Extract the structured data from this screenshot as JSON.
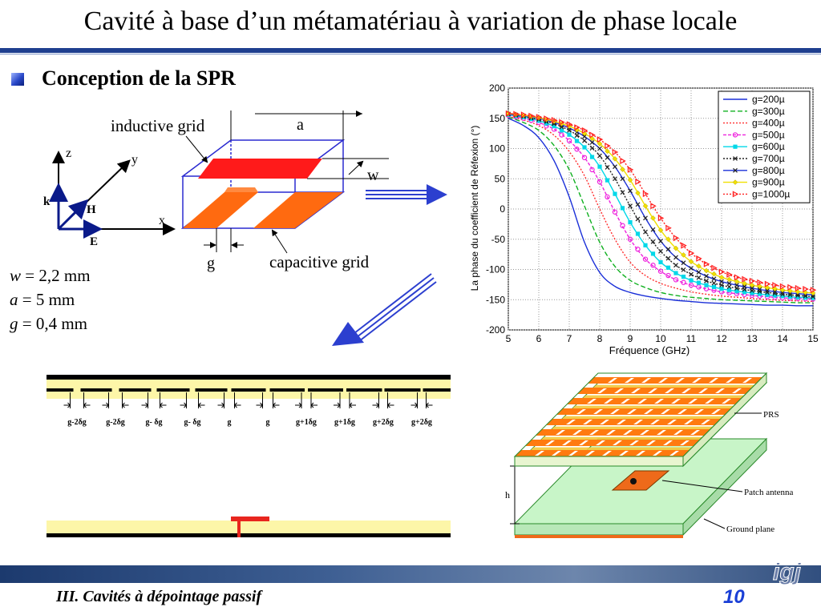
{
  "slide": {
    "title": "Cavité à base d’un métamatériau à variation de phase locale",
    "section": "Conception de la SPR",
    "footer": "III. Cavités à dépointage passif",
    "page_number": "10",
    "logo_text": "igj"
  },
  "params": [
    {
      "symbol": "w",
      "value": " = 2,2 mm"
    },
    {
      "symbol": "a",
      "value": " = 5 mm"
    },
    {
      "symbol": "g",
      "value": " = 0,4 mm"
    }
  ],
  "cell_diagram": {
    "inductive_label": "inductive grid",
    "capacitive_label": "capacitive grid",
    "a_label": "a",
    "w_label": "w",
    "g_label": "g",
    "axis_z": "z",
    "axis_y": "y",
    "axis_x": "x",
    "k_label": "k",
    "h_label": "H",
    "e_label": "E",
    "colors": {
      "inductive": "#ff1a1a",
      "capacitive": "#ff6a10",
      "box": "#2a2ad0"
    }
  },
  "gap_diagram": {
    "labels": [
      "g-2δg",
      "g-2δg",
      "g- δg",
      "g- δg",
      "g",
      "g",
      "g+1δg",
      "g+1δg",
      "g+2δg",
      "g+2δg"
    ],
    "colors": {
      "substrate": "#fdf6a8",
      "metal": "#000000",
      "feed": "#e8261e"
    }
  },
  "structure_3d": {
    "prs_label": "PRS",
    "h_label": "h",
    "patch_label": "Patch antenna",
    "ground_label": "Ground plane",
    "colors": {
      "strips": "#ff7a10",
      "bottom_strips": "#f3c63a",
      "ground": "#c8f5c8",
      "patch": "#ee6a1a"
    }
  },
  "chart_data": {
    "type": "line",
    "xlabel": "Fréquence (GHz)",
    "ylabel": "La phase du coefficient de Réfexion (°)",
    "xlim": [
      5,
      15
    ],
    "ylim": [
      -200,
      200
    ],
    "xticks": [
      5,
      6,
      7,
      8,
      9,
      10,
      11,
      12,
      13,
      14,
      15
    ],
    "yticks": [
      200,
      150,
      100,
      50,
      0,
      -50,
      -100,
      -150,
      -200
    ],
    "grid": true,
    "legend_position": "top-right",
    "x": [
      5,
      5.5,
      6,
      6.5,
      7,
      7.5,
      8,
      8.5,
      9,
      9.5,
      10,
      10.5,
      11,
      11.5,
      12,
      12.5,
      13,
      13.5,
      14,
      14.5,
      15
    ],
    "series": [
      {
        "name": "g=200µ",
        "color": "#1a2fd8",
        "dash": "",
        "marker": "none",
        "values": [
          150,
          138,
          118,
          80,
          20,
          -55,
          -105,
          -128,
          -138,
          -144,
          -148,
          -151,
          -153,
          -155,
          -156,
          -157,
          -158,
          -159,
          -159,
          -160,
          -160
        ]
      },
      {
        "name": "g=300µ",
        "color": "#10b020",
        "dash": "6,3",
        "marker": "none",
        "values": [
          152,
          143,
          130,
          105,
          65,
          5,
          -55,
          -95,
          -118,
          -130,
          -138,
          -143,
          -146,
          -148,
          -150,
          -151,
          -152,
          -153,
          -154,
          -155,
          -155
        ]
      },
      {
        "name": "g=400µ",
        "color": "#ff3030",
        "dash": "2,2",
        "marker": "none",
        "values": [
          153,
          147,
          138,
          122,
          95,
          55,
          0,
          -50,
          -88,
          -110,
          -123,
          -131,
          -137,
          -141,
          -144,
          -146,
          -148,
          -150,
          -151,
          -152,
          -153
        ]
      },
      {
        "name": "g=500µ",
        "color": "#ee22dd",
        "dash": "4,2",
        "marker": "circle",
        "values": [
          155,
          150,
          143,
          132,
          113,
          85,
          45,
          -5,
          -50,
          -83,
          -103,
          -117,
          -126,
          -132,
          -137,
          -140,
          -143,
          -145,
          -147,
          -148,
          -149
        ]
      },
      {
        "name": "g=600µ",
        "color": "#00d8e8",
        "dash": "",
        "marker": "square",
        "values": [
          156,
          152,
          146,
          137,
          123,
          102,
          70,
          25,
          -22,
          -60,
          -88,
          -106,
          -118,
          -126,
          -132,
          -136,
          -139,
          -142,
          -144,
          -146,
          -147
        ]
      },
      {
        "name": "g=700µ",
        "color": "#222222",
        "dash": "2,2",
        "marker": "x",
        "values": [
          157,
          153,
          148,
          141,
          130,
          113,
          88,
          50,
          5,
          -38,
          -70,
          -93,
          -108,
          -119,
          -126,
          -131,
          -135,
          -138,
          -141,
          -143,
          -145
        ]
      },
      {
        "name": "g=800µ",
        "color": "#1a2fd8",
        "dash": "",
        "marker": "x",
        "values": [
          157,
          154,
          150,
          143,
          134,
          120,
          100,
          70,
          30,
          -15,
          -53,
          -80,
          -98,
          -111,
          -120,
          -126,
          -131,
          -135,
          -138,
          -140,
          -142
        ]
      },
      {
        "name": "g=900µ",
        "color": "#f0e000",
        "dash": "",
        "marker": "diamond",
        "values": [
          158,
          155,
          151,
          145,
          137,
          125,
          108,
          83,
          48,
          5,
          -35,
          -65,
          -87,
          -102,
          -113,
          -120,
          -126,
          -130,
          -134,
          -137,
          -139
        ]
      },
      {
        "name": "g=1000µ",
        "color": "#ff2020",
        "dash": "2,2",
        "marker": "triangle",
        "values": [
          158,
          156,
          152,
          147,
          140,
          130,
          115,
          94,
          65,
          25,
          -15,
          -48,
          -73,
          -91,
          -104,
          -113,
          -119,
          -124,
          -128,
          -131,
          -134
        ]
      }
    ]
  }
}
